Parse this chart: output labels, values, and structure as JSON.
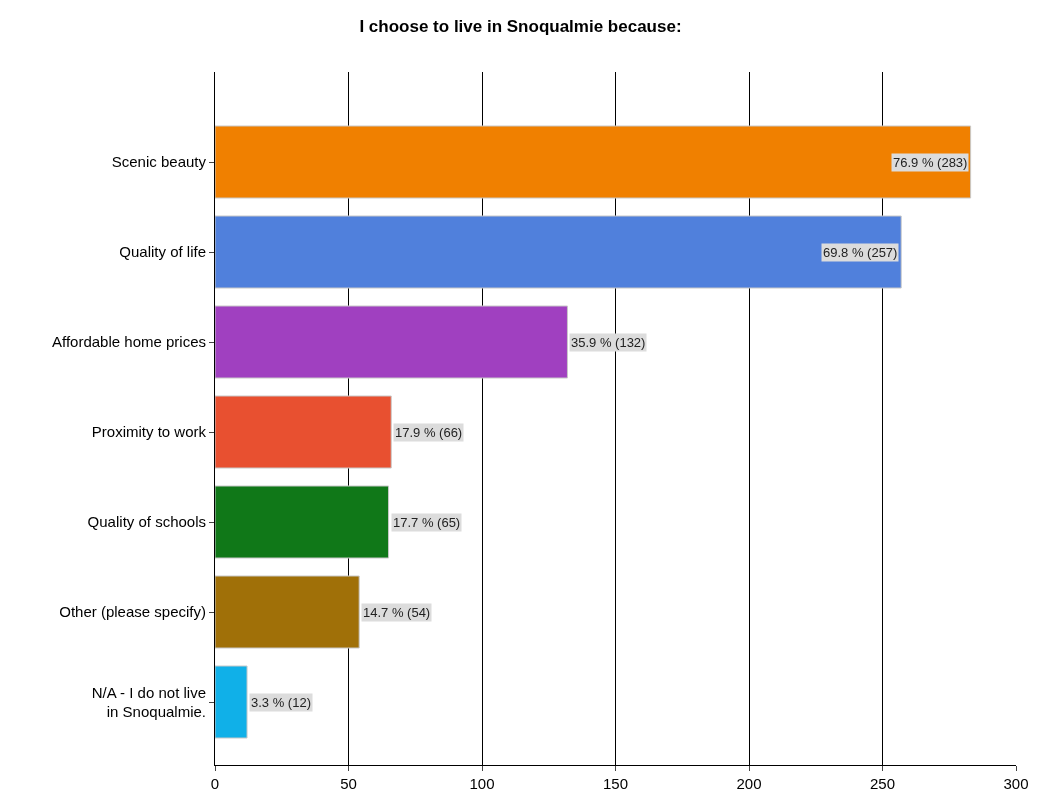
{
  "chart_data": {
    "type": "bar",
    "orientation": "horizontal",
    "title": "I choose to live in Snoqualmie because:",
    "categories": [
      "Scenic beauty",
      "Quality of life",
      "Affordable home prices",
      "Proximity to work",
      "Quality of schools",
      "Other (please specify)",
      "N/A - I do not live\nin Snoqualmie."
    ],
    "values": [
      283,
      257,
      132,
      66,
      65,
      54,
      12
    ],
    "colors": [
      "#f08000",
      "#5080dc",
      "#a040c0",
      "#e85030",
      "#107818",
      "#a07008",
      "#10b0e8"
    ],
    "value_labels": [
      "76.9 % (283)",
      "69.8 % (257)",
      "35.9 % (132)",
      "17.9 % (66)",
      "17.7 % (65)",
      "14.7 % (54)",
      "3.3 % (12)"
    ],
    "xlim": [
      0,
      300
    ],
    "xticks": [
      0,
      50,
      100,
      150,
      200,
      250,
      300
    ],
    "grid": "x",
    "legend": false
  }
}
